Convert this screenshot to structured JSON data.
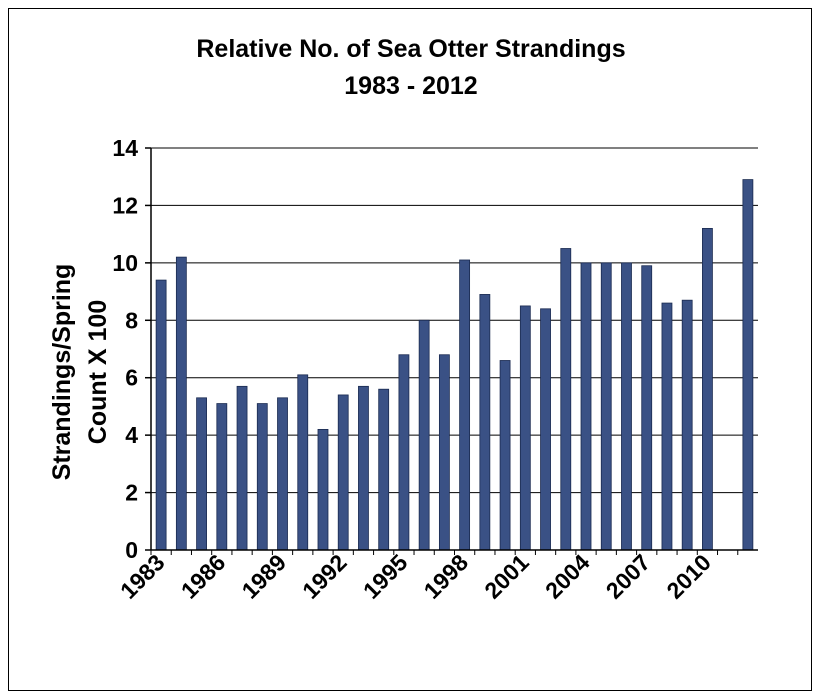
{
  "chart_data": {
    "type": "bar",
    "title": "Relative No. of Sea Otter Strandings",
    "subtitle": "1983 - 2012",
    "ylabel_lines": [
      "Strandings/Spring",
      "Count X 100"
    ],
    "xlabel": "",
    "ylim": [
      0,
      14
    ],
    "yticks": [
      0,
      2,
      4,
      6,
      8,
      10,
      12,
      14
    ],
    "grid": true,
    "legend": "none",
    "bar_color": "#3a5185",
    "categories": [
      1983,
      1984,
      1985,
      1986,
      1987,
      1988,
      1989,
      1990,
      1991,
      1992,
      1993,
      1994,
      1995,
      1996,
      1997,
      1998,
      1999,
      2000,
      2001,
      2002,
      2003,
      2004,
      2005,
      2006,
      2007,
      2008,
      2009,
      2010,
      2011,
      2012
    ],
    "x_tick_labels": [
      "1983",
      "1986",
      "1989",
      "1992",
      "1995",
      "1998",
      "2001",
      "2004",
      "2007",
      "2010"
    ],
    "values": [
      9.4,
      10.2,
      5.3,
      5.1,
      5.7,
      5.1,
      5.3,
      6.1,
      4.2,
      5.4,
      5.7,
      5.6,
      6.8,
      8.0,
      6.8,
      10.1,
      8.9,
      6.6,
      8.5,
      8.4,
      10.5,
      10.0,
      10.0,
      10.0,
      9.9,
      8.6,
      8.7,
      11.2,
      null,
      12.9
    ]
  }
}
